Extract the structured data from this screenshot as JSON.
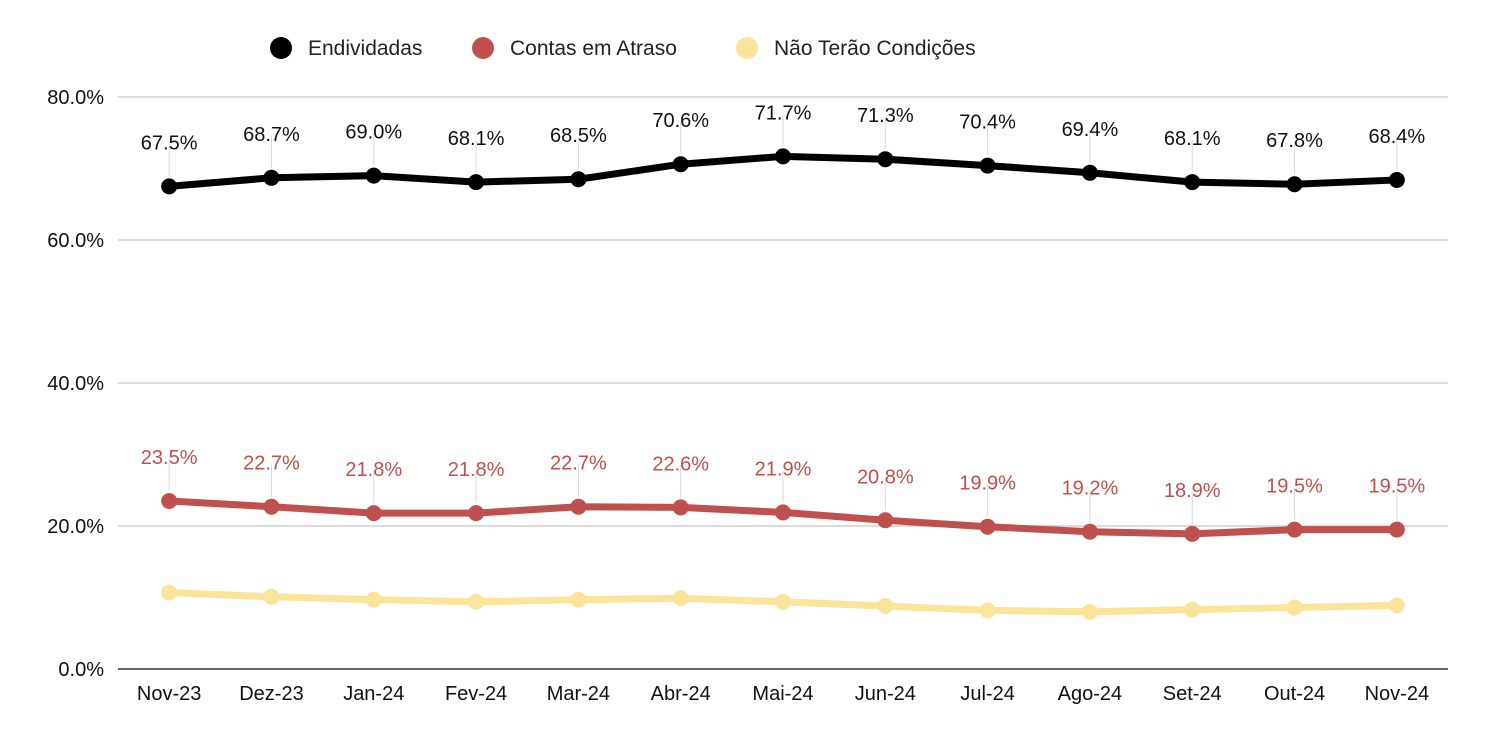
{
  "chart_data": {
    "type": "line",
    "title": "",
    "xlabel": "",
    "ylabel": "",
    "categories": [
      "Nov-23",
      "Dez-23",
      "Jan-24",
      "Fev-24",
      "Mar-24",
      "Abr-24",
      "Mai-24",
      "Jun-24",
      "Jul-24",
      "Ago-24",
      "Set-24",
      "Out-24",
      "Nov-24"
    ],
    "y_ticks": [
      "0.0%",
      "20.0%",
      "40.0%",
      "60.0%",
      "80.0%"
    ],
    "ylim": [
      0,
      80
    ],
    "grid": true,
    "legend_position": "top",
    "series": [
      {
        "name": "Endividadas",
        "color": "#000000",
        "values": [
          67.5,
          68.7,
          69.0,
          68.1,
          68.5,
          70.6,
          71.7,
          71.3,
          70.4,
          69.4,
          68.1,
          67.8,
          68.4
        ],
        "labels": [
          "67.5%",
          "68.7%",
          "69.0%",
          "68.1%",
          "68.5%",
          "70.6%",
          "71.7%",
          "71.3%",
          "70.4%",
          "69.4%",
          "68.1%",
          "67.8%",
          "68.4%"
        ]
      },
      {
        "name": "Contas em Atraso",
        "color": "#c0504d",
        "values": [
          23.5,
          22.7,
          21.8,
          21.8,
          22.7,
          22.6,
          21.9,
          20.8,
          19.9,
          19.2,
          18.9,
          19.5,
          19.5
        ],
        "labels": [
          "23.5%",
          "22.7%",
          "21.8%",
          "21.8%",
          "22.7%",
          "22.6%",
          "21.9%",
          "20.8%",
          "19.9%",
          "19.2%",
          "18.9%",
          "19.5%",
          "19.5%"
        ]
      },
      {
        "name": "Não Terão Condições",
        "color": "#fde49b",
        "values": [
          10.7,
          10.1,
          9.7,
          9.4,
          9.7,
          9.9,
          9.4,
          8.8,
          8.2,
          8.0,
          8.3,
          8.6,
          8.9
        ],
        "labels": []
      }
    ]
  }
}
